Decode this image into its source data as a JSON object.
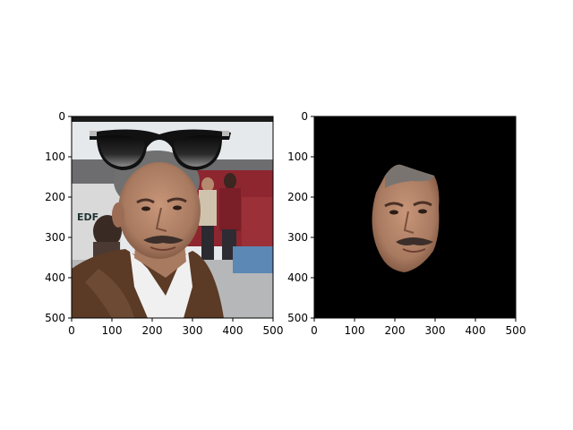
{
  "chart_data": [
    {
      "type": "image",
      "content": "photo of a man with a mustache in a brown leather jacket, with a pair of sunglasses drawn above his head",
      "xlim": [
        0,
        500
      ],
      "ylim": [
        500,
        0
      ],
      "xticks": [
        0,
        100,
        200,
        300,
        400,
        500
      ],
      "yticks": [
        0,
        100,
        200,
        300,
        400,
        500
      ],
      "grid": false
    },
    {
      "type": "image",
      "content": "segmented face of the same man on a black background",
      "xlim": [
        0,
        500
      ],
      "ylim": [
        500,
        0
      ],
      "xticks": [
        0,
        100,
        200,
        300,
        400,
        500
      ],
      "yticks": [
        0,
        100,
        200,
        300,
        400,
        500
      ],
      "grid": false,
      "background": "#000000"
    }
  ],
  "colors": {
    "skin": "#b98a6e",
    "skin_shadow": "#8a5e46",
    "hair": "#6f6e6c",
    "jacket": "#5b3a26",
    "shirt": "#f2f2f2",
    "glasses": "#111111",
    "crowd_red": "#9a2a34",
    "ground": "#b4b4b4"
  }
}
